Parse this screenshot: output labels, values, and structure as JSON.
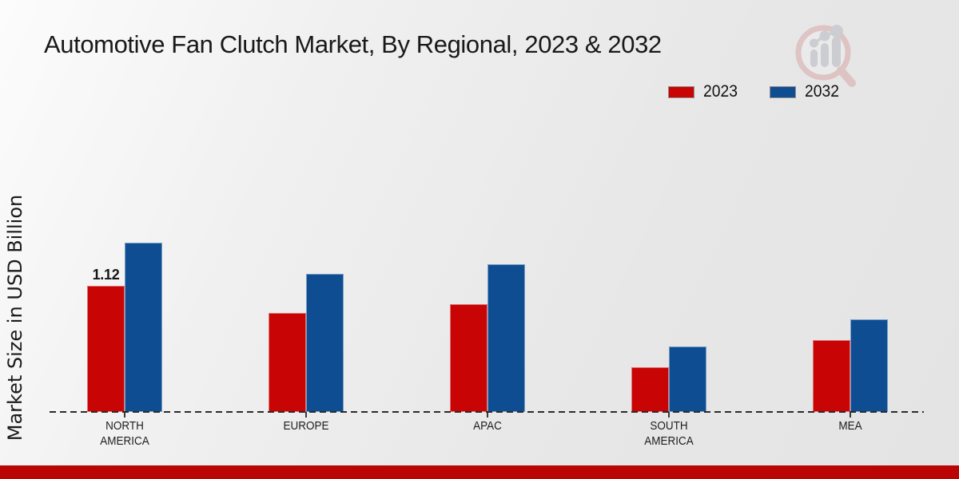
{
  "chart_data": {
    "type": "bar",
    "title": "Automotive Fan Clutch Market, By Regional, 2023 & 2032",
    "ylabel": "Market Size in USD Billion",
    "xlabel": "",
    "units": "USD Billion",
    "categories": [
      "NORTH\nAMERICA",
      "EUROPE",
      "APAC",
      "SOUTH\nAMERICA",
      "MEA"
    ],
    "series": [
      {
        "name": "2023",
        "color": "#c80404",
        "values": [
          1.12,
          0.88,
          0.96,
          0.4,
          0.64
        ],
        "point_labels": [
          "1.12",
          "",
          "",
          "",
          ""
        ]
      },
      {
        "name": "2032",
        "color": "#0e4d92",
        "values": [
          1.5,
          1.23,
          1.31,
          0.58,
          0.82
        ],
        "point_labels": [
          "",
          "",
          "",
          "",
          ""
        ]
      }
    ],
    "ylim": [
      0,
      1.6
    ],
    "grid": false,
    "axis_style": "dashed-baseline",
    "legend_position": "top-right"
  },
  "watermark": {
    "icon": "bar-chart-magnifier-logo"
  },
  "footer": {
    "color": "#bb0505"
  }
}
